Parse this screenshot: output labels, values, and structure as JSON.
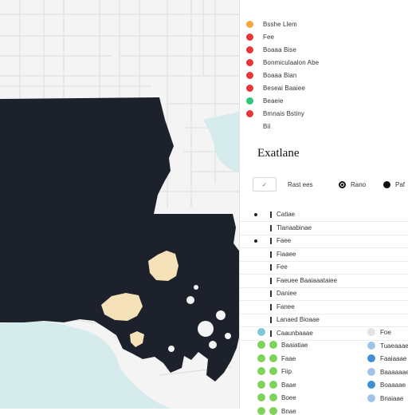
{
  "legend": [
    {
      "label": "Bsshe Llem",
      "color": "#f4a640"
    },
    {
      "label": "Fee",
      "color": "#e8343c"
    },
    {
      "label": "Boaaa Bise",
      "color": "#e8343c"
    },
    {
      "label": "Bonmiculaalon Abe",
      "color": "#e8343c"
    },
    {
      "label": "Boaaa Bian",
      "color": "#e8343c"
    },
    {
      "label": "Beseai Baaiee",
      "color": "#e8343c"
    },
    {
      "label": "Beaeie",
      "color": "#2ec77a"
    },
    {
      "label": "Bmnais Bstiny",
      "color": "#e8343c"
    },
    {
      "label": "Bil",
      "color": ""
    }
  ],
  "panel": {
    "title": "Exatlane",
    "select_label": "✓",
    "mode_label": "Rast ees",
    "radio1_label": "Rano",
    "radio2_label": "Paf"
  },
  "list": [
    {
      "label": "Catiae",
      "bullet": true
    },
    {
      "label": "Tlanaabinae",
      "bullet": false
    },
    {
      "label": "Faee",
      "bullet": true
    },
    {
      "label": "Fiaaee",
      "bullet": false
    },
    {
      "label": "Fee",
      "bullet": false
    },
    {
      "label": "Faeuee Baaiaaataiee",
      "bullet": false
    },
    {
      "label": "Daniee",
      "bullet": false
    },
    {
      "label": "Fanee",
      "bullet": false
    },
    {
      "label": "Lanaed Bioaae",
      "bullet": false
    },
    {
      "label": "Caaunbaaae",
      "bullet": false
    }
  ],
  "groups_left": [
    {
      "label": "Baaiatiae",
      "color": "#7dd35a"
    },
    {
      "label": "Faae",
      "color": "#7dd35a"
    },
    {
      "label": "Fiip",
      "color": "#7dd35a"
    },
    {
      "label": "Baae",
      "color": "#7dd35a"
    },
    {
      "label": "Boee",
      "color": "#7dd35a"
    },
    {
      "label": "Bnae",
      "color": "#7dd35a"
    }
  ],
  "groups_right": [
    {
      "label": "Foe",
      "color": "#dfe3e8"
    },
    {
      "label": "Tuaeaaae",
      "color": "#9fc4e8"
    },
    {
      "label": "Faaiaaae",
      "color": "#3f8fd8"
    },
    {
      "label": "Baaaaaae",
      "color": "#9fc4e8"
    },
    {
      "label": "Boaaaae",
      "color": "#3f8fd8"
    },
    {
      "label": "Bnaiaae",
      "color": "#9fc4e8"
    }
  ],
  "map": {
    "land_color": "#1d212b",
    "highlight_color": "#f6e2b8",
    "water_color": "#d6ecec",
    "base_color": "#f4f4f4"
  }
}
